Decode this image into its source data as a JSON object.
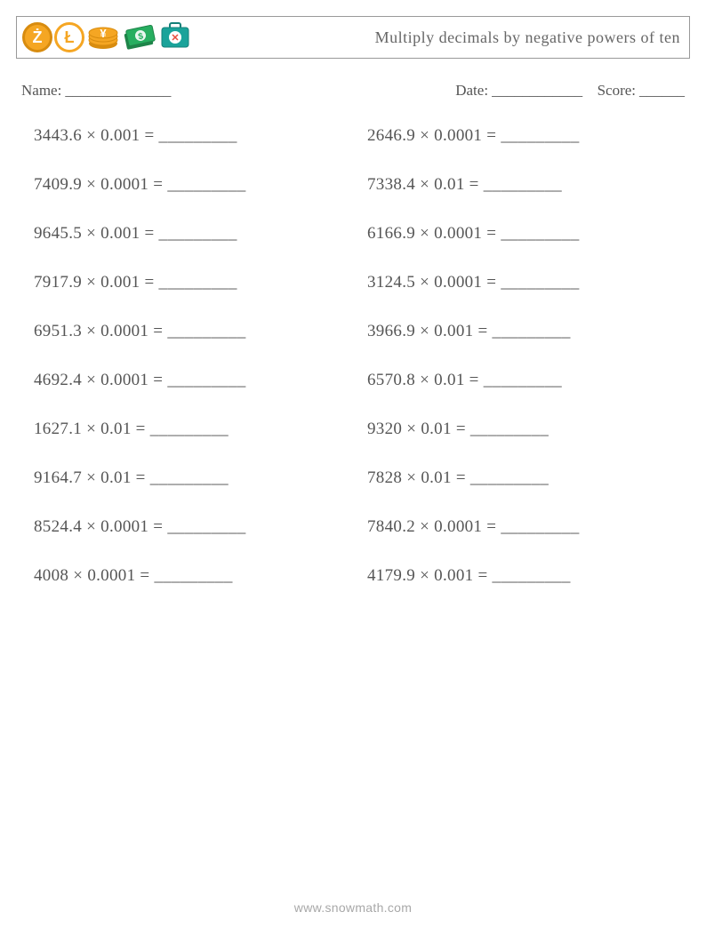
{
  "header": {
    "title": "Multiply decimals by negative powers of ten",
    "title_color": "#666666",
    "border_color": "#999999",
    "icons": [
      {
        "name": "coin-z",
        "glyph": "Ż",
        "bg": "#f5a623",
        "border": "#d88c0f",
        "fg": "#ffffff",
        "shape": "circle"
      },
      {
        "name": "coin-l",
        "glyph": "Ł",
        "bg": "#ffffff",
        "border": "#f5a623",
        "fg": "#f5a623",
        "shape": "circle"
      },
      {
        "name": "coin-y-stack",
        "glyph": "¥",
        "bg": "#f5a623",
        "border": "#d88c0f",
        "fg": "#ffffff",
        "shape": "stack"
      },
      {
        "name": "cash-stack",
        "glyph": "$",
        "bg": "#27ae60",
        "border": "#1e8449",
        "fg": "#ffffff",
        "shape": "cash"
      },
      {
        "name": "briefcase",
        "glyph": "✕",
        "bg": "#1aa39a",
        "border": "#148079",
        "fg": "#e74c3c",
        "shape": "briefcase"
      }
    ]
  },
  "info": {
    "name_label": "Name:",
    "name_blank": "______________",
    "date_label": "Date:",
    "date_blank": "____________",
    "score_label": "Score:",
    "score_blank": "______"
  },
  "styling": {
    "text_color": "#555555",
    "blank": "_________",
    "font_size_problem": 19,
    "font_size_title": 18,
    "font_size_info": 17,
    "row_gap": 33,
    "multiply_symbol": "×"
  },
  "problems": {
    "left": [
      {
        "a": "3443.6",
        "b": "0.001"
      },
      {
        "a": "7409.9",
        "b": "0.0001"
      },
      {
        "a": "9645.5",
        "b": "0.001"
      },
      {
        "a": "7917.9",
        "b": "0.001"
      },
      {
        "a": "6951.3",
        "b": "0.0001"
      },
      {
        "a": "4692.4",
        "b": "0.0001"
      },
      {
        "a": "1627.1",
        "b": "0.01"
      },
      {
        "a": "9164.7",
        "b": "0.01"
      },
      {
        "a": "8524.4",
        "b": "0.0001"
      },
      {
        "a": "4008",
        "b": "0.0001"
      }
    ],
    "right": [
      {
        "a": "2646.9",
        "b": "0.0001"
      },
      {
        "a": "7338.4",
        "b": "0.01"
      },
      {
        "a": "6166.9",
        "b": "0.0001"
      },
      {
        "a": "3124.5",
        "b": "0.0001"
      },
      {
        "a": "3966.9",
        "b": "0.001"
      },
      {
        "a": "6570.8",
        "b": "0.01"
      },
      {
        "a": "9320",
        "b": "0.01"
      },
      {
        "a": "7828",
        "b": "0.01"
      },
      {
        "a": "7840.2",
        "b": "0.0001"
      },
      {
        "a": "4179.9",
        "b": "0.001"
      }
    ]
  },
  "footer": {
    "text": "www.snowmath.com",
    "color": "#a8a8a8"
  }
}
